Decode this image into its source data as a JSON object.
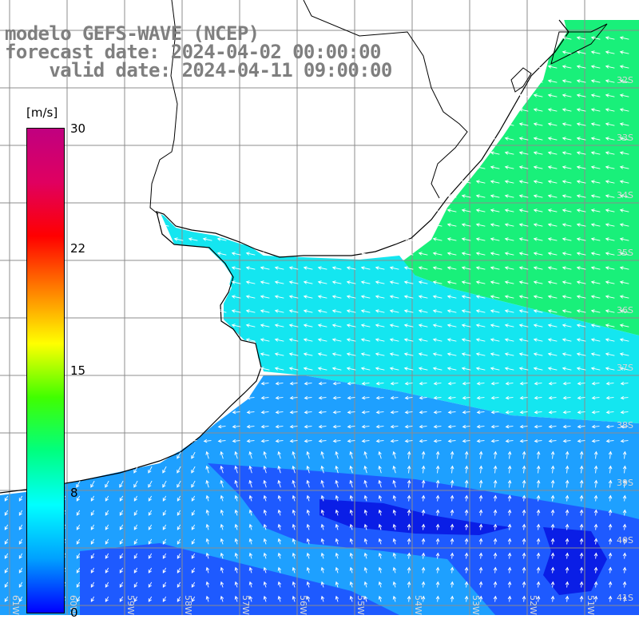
{
  "title": {
    "line1": "modelo GEFS-WAVE (NCEP)",
    "line2": "forecast date: 2024-04-02 00:00:00",
    "line3": "    valid date: 2024-04-11 09:00:00"
  },
  "colorbar": {
    "unit": "[m/s]",
    "ticks": [
      "30",
      "22",
      "15",
      "8",
      "0"
    ],
    "colors": [
      "#0000ff",
      "#00a0ff",
      "#00ffff",
      "#00ff80",
      "#40ff00",
      "#ffff00",
      "#ff8000",
      "#ff0000",
      "#e00060",
      "#c00080"
    ]
  },
  "map": {
    "lat_labels": [
      "32S",
      "33S",
      "34S",
      "35S",
      "36S",
      "37S",
      "38S",
      "39S",
      "40S",
      "41S"
    ],
    "lon_labels": [
      "61W",
      "60W",
      "59W",
      "58W",
      "57W",
      "56W",
      "55W",
      "54W",
      "53W",
      "52W",
      "51W"
    ],
    "colors": {
      "land": "#ffffff",
      "grid": "#8c8c8c",
      "coast": "#000000",
      "arrows": "#ffffff",
      "strong_wind": "#19f07a",
      "moderate_wind": "#14e6f0",
      "light_wind": "#1ea0ff",
      "weak_wind": "#1e5aff",
      "calm": "#0a1ee6"
    }
  }
}
